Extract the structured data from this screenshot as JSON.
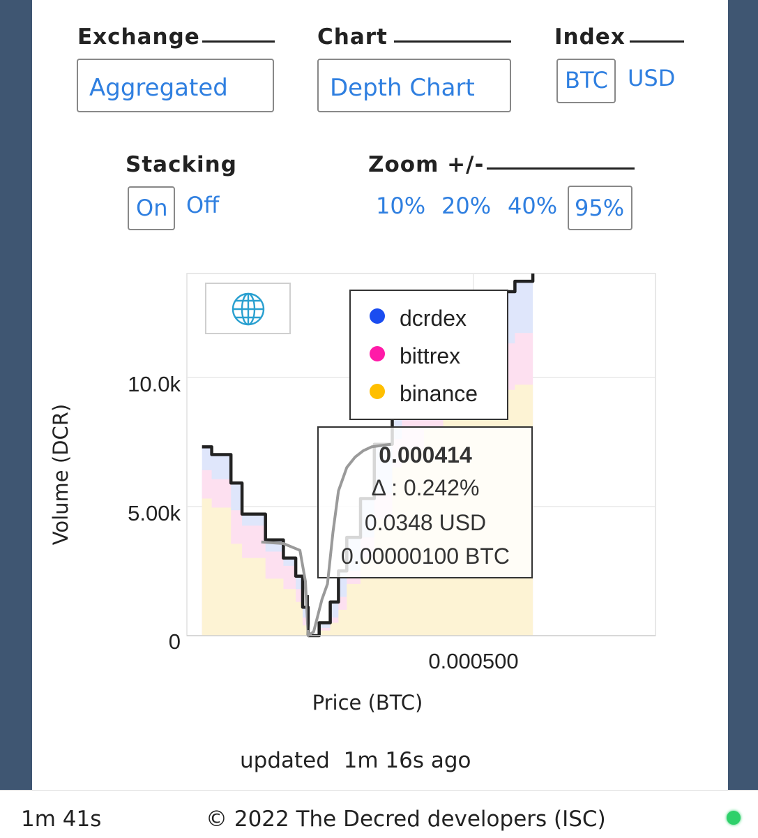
{
  "controls": {
    "exchange": {
      "label": "Exchange",
      "value": "Aggregated"
    },
    "chart": {
      "label": "Chart",
      "value": "Depth Chart"
    },
    "index": {
      "label": "Index",
      "options": [
        "BTC",
        "USD"
      ],
      "selected": "BTC"
    },
    "stacking": {
      "label": "Stacking",
      "options": [
        "On",
        "Off"
      ],
      "selected": "On"
    },
    "zoom": {
      "label": "Zoom +/-",
      "options": [
        "10%",
        "20%",
        "40%",
        "95%"
      ],
      "selected": "95%"
    }
  },
  "chart_data": {
    "type": "area",
    "xlabel": "Price (BTC)",
    "ylabel": "Volume (DCR)",
    "x_tick_labels": [
      "0.000500"
    ],
    "y_tick_labels": [
      "0",
      "5.00k",
      "10.0k"
    ],
    "ylim": [
      0,
      14000
    ],
    "xlim": [
      0.00037,
      0.00054
    ],
    "legend": {
      "placement": "top-center",
      "entries": [
        {
          "name": "dcrdex",
          "color": "#1a4cf0"
        },
        {
          "name": "bittrex",
          "color": "#ff1aa8"
        },
        {
          "name": "binance",
          "color": "#ffbf00"
        }
      ]
    },
    "stack_colors": {
      "binance": "#fdf3d4",
      "bittrex": "#fde0f0",
      "dcrdex": "#dfe6fb"
    },
    "bids": {
      "x": [
        0.0003755,
        0.000379,
        0.000386,
        0.00039,
        0.0003985,
        0.000405,
        0.0004095,
        0.000412,
        0.000414
      ],
      "binance": [
        5300,
        4950,
        3550,
        3000,
        2200,
        1800,
        1300,
        400,
        0
      ],
      "bittrex": [
        6400,
        6050,
        4850,
        4250,
        3250,
        2700,
        1800,
        700,
        0
      ],
      "total": [
        7300,
        7000,
        5900,
        4700,
        3700,
        3000,
        2300,
        1100,
        0
      ]
    },
    "asks": {
      "x": [
        0.000414,
        0.000418,
        0.000422,
        0.000425,
        0.000428,
        0.000433,
        0.000438,
        0.0004445,
        0.000448,
        0.000456,
        0.000463,
        0.000467,
        0.0004765,
        0.000484,
        0.000489,
        0.0004955
      ],
      "binance": [
        0,
        200,
        500,
        1000,
        2000,
        3000,
        4500,
        6500,
        7200,
        8000,
        8500,
        8900,
        9200,
        9500,
        9700,
        9500
      ],
      "bittrex": [
        0,
        300,
        700,
        1500,
        2500,
        3800,
        5500,
        7600,
        8400,
        9300,
        9900,
        10400,
        10800,
        11300,
        11700,
        12200
      ],
      "total": [
        0,
        500,
        1300,
        2500,
        3800,
        5300,
        7400,
        8600,
        8800,
        10000,
        11800,
        12400,
        12900,
        13300,
        13700,
        14000
      ]
    },
    "hover_line": {
      "x": [
        0.000397,
        0.000405,
        0.000411,
        0.000413,
        0.000414,
        0.000416,
        0.000419,
        0.000421,
        0.000423,
        0.000425,
        0.000428,
        0.000431,
        0.000434,
        0.000437,
        0.000444
      ],
      "y": [
        3620,
        3560,
        3300,
        2100,
        0,
        150,
        1400,
        2000,
        4000,
        5600,
        6500,
        6900,
        7150,
        7300,
        7400
      ]
    },
    "tooltip": {
      "price": "0.000414",
      "delta": "Δ : 0.242%",
      "usd": "0.0348 USD",
      "btc": "0.00000100 BTC"
    }
  },
  "updated": {
    "prefix": "updated",
    "value": "1m 16s ago"
  },
  "footer": {
    "timer": "1m 41s",
    "copyright": "© 2022 The Decred developers (ISC)"
  },
  "colors": {
    "accent": "#2f7fe0",
    "sidebar": "#3f5672",
    "status_online": "#2ed06a"
  }
}
